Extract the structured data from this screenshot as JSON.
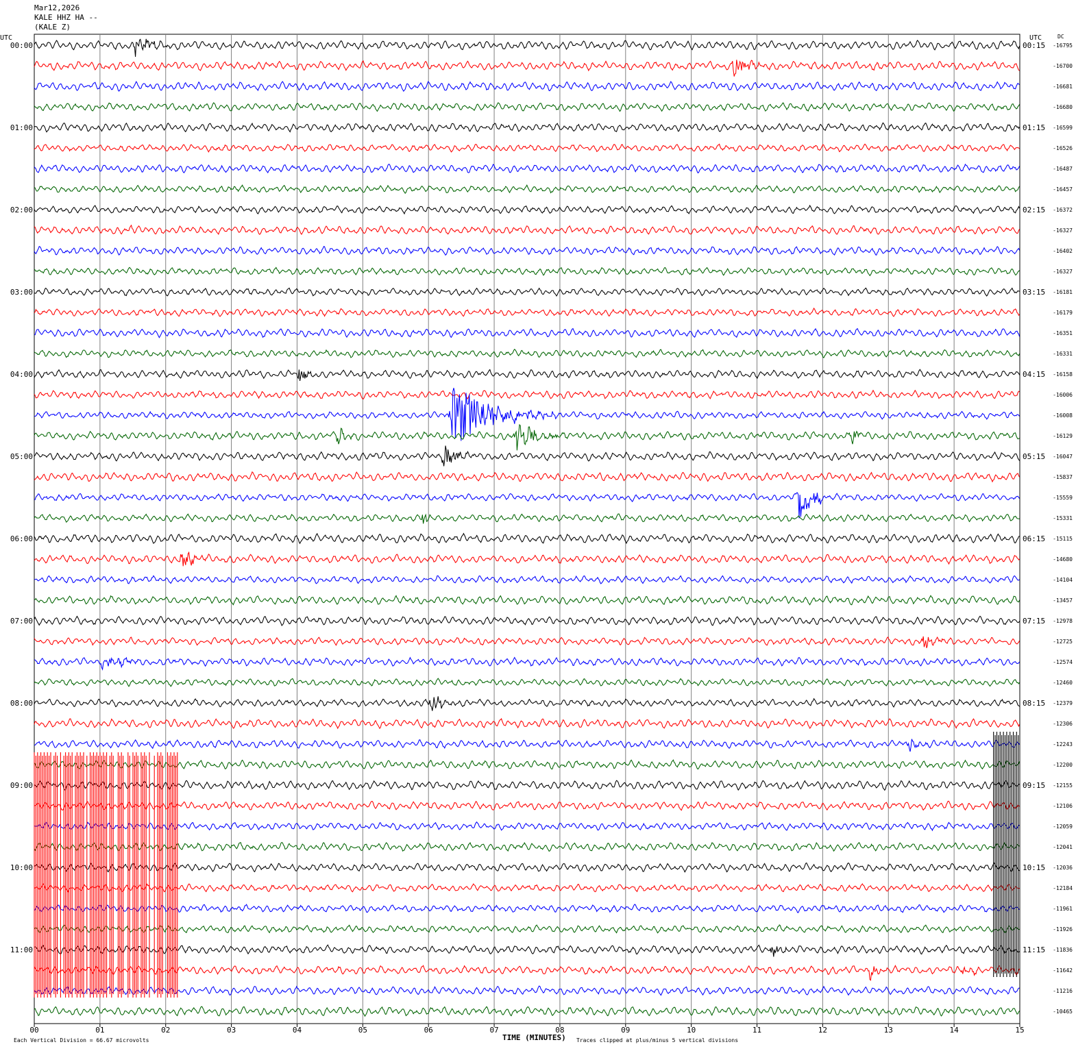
{
  "header": {
    "date": "Mar12,2026",
    "station": "KALE HHZ HA --",
    "station_short": "(KALE Z)"
  },
  "labels": {
    "utc_left": "UTC",
    "utc_right": "UTC",
    "dc": "DC",
    "xlabel": "TIME (MINUTES)",
    "scale_note": "Each Vertical Division =   66.67 microvolts",
    "clip_note": "Traces clipped at plus/minus 5 vertical divisions"
  },
  "colors": {
    "trace_cycle": [
      "#000000",
      "#ff0000",
      "#0000ff",
      "#006400"
    ],
    "grid": "#808080",
    "border": "#000000"
  },
  "chart_data": {
    "type": "line",
    "title": "",
    "xlabel": "TIME (MINUTES)",
    "x_ticks": [
      "00",
      "01",
      "02",
      "03",
      "04",
      "05",
      "06",
      "07",
      "08",
      "09",
      "10",
      "11",
      "12",
      "13",
      "14",
      "15"
    ],
    "xlim": [
      0,
      15
    ],
    "vertical_division_microvolts": 66.67,
    "left_time_labels": [
      "00:00",
      "01:00",
      "02:00",
      "03:00",
      "04:00",
      "05:00",
      "06:00",
      "07:00",
      "08:00",
      "09:00",
      "10:00",
      "11:00"
    ],
    "right_time_labels": [
      "00:15",
      "01:15",
      "02:15",
      "03:15",
      "04:15",
      "05:15",
      "06:15",
      "07:15",
      "08:15",
      "09:15",
      "10:15",
      "11:15"
    ],
    "dc_offsets": [
      "-16795",
      "-16700",
      "-16681",
      "-16680",
      "-16599",
      "-16526",
      "-16487",
      "-16457",
      "-16372",
      "-16327",
      "-16402",
      "-16327",
      "-16181",
      "-16179",
      "-16351",
      "-16331",
      "-16158",
      "-16006",
      "-16008",
      "-16129",
      "-16047",
      "-15837",
      "-15559",
      "-15331",
      "-15115",
      "-14680",
      "-14104",
      "-13457",
      "-12978",
      "-12725",
      "-12574",
      "-12460",
      "-12379",
      "-12306",
      "-12243",
      "-12200",
      "-12155",
      "-12106",
      "-12059",
      "-12041",
      "-12036",
      "-12184",
      "-11961",
      "-11926",
      "-11836",
      "-11642",
      "-11216",
      "-10465"
    ],
    "events": [
      {
        "trace": 0,
        "start_min": 1.5,
        "end_min": 2.2,
        "amp": 1.2
      },
      {
        "trace": 1,
        "start_min": 10.6,
        "end_min": 11.2,
        "amp": 1.1
      },
      {
        "trace": 9,
        "start_min": 1.45,
        "end_min": 1.65,
        "amp": 0.8
      },
      {
        "trace": 16,
        "start_min": 4.0,
        "end_min": 4.3,
        "amp": 1.4
      },
      {
        "trace": 18,
        "start_min": 6.3,
        "end_min": 8.0,
        "amp": 4.0
      },
      {
        "trace": 19,
        "start_min": 4.6,
        "end_min": 4.9,
        "amp": 1.4
      },
      {
        "trace": 19,
        "start_min": 7.3,
        "end_min": 8.2,
        "amp": 1.6
      },
      {
        "trace": 19,
        "start_min": 12.4,
        "end_min": 12.7,
        "amp": 1.3
      },
      {
        "trace": 20,
        "start_min": 6.2,
        "end_min": 6.8,
        "amp": 1.5
      },
      {
        "trace": 22,
        "start_min": 11.6,
        "end_min": 12.1,
        "amp": 4.0
      },
      {
        "trace": 23,
        "start_min": 5.9,
        "end_min": 6.1,
        "amp": 1.4
      },
      {
        "trace": 25,
        "start_min": 2.2,
        "end_min": 2.8,
        "amp": 1.1
      },
      {
        "trace": 29,
        "start_min": 13.5,
        "end_min": 13.9,
        "amp": 1.1
      },
      {
        "trace": 30,
        "start_min": 1.0,
        "end_min": 1.8,
        "amp": 0.8
      },
      {
        "trace": 32,
        "start_min": 6.0,
        "end_min": 6.4,
        "amp": 1.5
      },
      {
        "trace": 34,
        "start_min": 13.3,
        "end_min": 13.6,
        "amp": 1.0
      },
      {
        "trace": 44,
        "start_min": 11.2,
        "end_min": 11.6,
        "amp": 1.2
      },
      {
        "trace": 45,
        "start_min": 12.7,
        "end_min": 13.0,
        "amp": 1.1
      },
      {
        "trace": 45,
        "start_min": 14.1,
        "end_min": 14.4,
        "amp": 0.9
      }
    ],
    "clipped_blocks": [
      {
        "color": "#ff0000",
        "start_min": 0.0,
        "end_min": 2.2,
        "from_trace": 36,
        "to_trace": 46
      },
      {
        "color": "#000000",
        "start_min": 14.6,
        "end_min": 15.0,
        "from_trace": 35,
        "to_trace": 45
      }
    ],
    "grid": true
  }
}
